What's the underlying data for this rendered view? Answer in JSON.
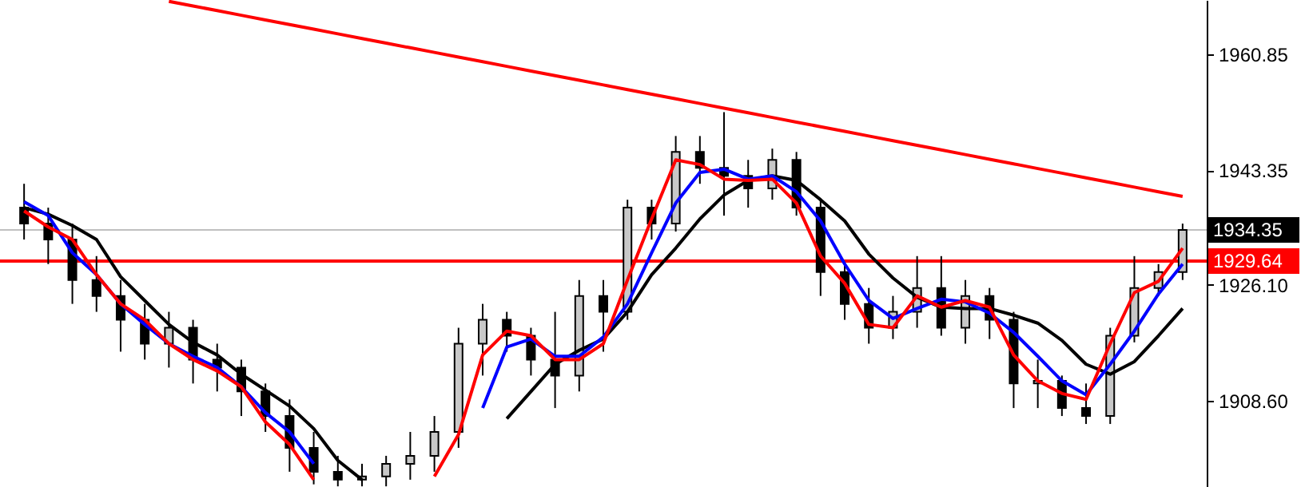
{
  "chart_data": {
    "type": "candlestick",
    "categories": [
      null,
      null,
      null,
      null,
      null,
      null,
      null,
      null,
      null,
      null,
      null,
      null,
      null,
      null,
      null,
      null,
      null,
      null,
      null,
      null,
      null,
      null,
      null,
      null,
      null,
      null,
      null,
      null,
      null,
      null,
      null,
      null,
      null,
      null,
      null,
      null,
      null,
      null,
      null,
      null,
      null,
      null,
      null,
      null,
      null,
      null,
      null,
      null,
      null
    ],
    "ohlc": [
      [
        1937.7,
        1941.3,
        1932.9,
        1935.3
      ],
      [
        1935.3,
        1937.7,
        1929.2,
        1932.9
      ],
      [
        1932.9,
        1935.3,
        1923.2,
        1926.8
      ],
      [
        1926.8,
        1930.4,
        1922.0,
        1924.4
      ],
      [
        1924.4,
        1926.8,
        1916.0,
        1920.8
      ],
      [
        1920.8,
        1923.2,
        1914.8,
        1917.2
      ],
      [
        1917.2,
        1922.0,
        1913.6,
        1919.6
      ],
      [
        1919.6,
        1920.8,
        1911.2,
        1914.8
      ],
      [
        1914.8,
        1917.2,
        1910.0,
        1913.6
      ],
      [
        1913.6,
        1914.8,
        1906.3,
        1910.0
      ],
      [
        1910.0,
        1911.2,
        1903.9,
        1906.3
      ],
      [
        1906.3,
        1908.8,
        1897.9,
        1901.5
      ],
      [
        1901.5,
        1903.9,
        1896.0,
        1897.9
      ],
      [
        1897.9,
        1900.3,
        1895.7,
        1896.7
      ],
      [
        1896.7,
        1899.1,
        1895.7,
        1897.2
      ],
      [
        1897.2,
        1900.3,
        1895.7,
        1899.1
      ],
      [
        1899.1,
        1903.9,
        1896.7,
        1900.3
      ],
      [
        1900.3,
        1906.3,
        1897.9,
        1903.9
      ],
      [
        1903.9,
        1919.6,
        1901.5,
        1917.2
      ],
      [
        1917.2,
        1923.2,
        1912.4,
        1920.8
      ],
      [
        1920.8,
        1922.0,
        1916.0,
        1918.4
      ],
      [
        1918.4,
        1919.6,
        1912.4,
        1914.8
      ],
      [
        1914.8,
        1922.0,
        1907.5,
        1912.4
      ],
      [
        1912.4,
        1926.8,
        1910.0,
        1924.4
      ],
      [
        1924.4,
        1926.8,
        1916.0,
        1922.0
      ],
      [
        1922.0,
        1938.9,
        1920.8,
        1937.7
      ],
      [
        1937.7,
        1938.9,
        1932.9,
        1935.3
      ],
      [
        1935.3,
        1948.5,
        1934.1,
        1946.1
      ],
      [
        1946.1,
        1948.5,
        1941.3,
        1943.7
      ],
      [
        1943.7,
        1952.1,
        1936.5,
        1942.5
      ],
      [
        1942.5,
        1944.9,
        1937.7,
        1940.6
      ],
      [
        1940.6,
        1946.6,
        1938.9,
        1944.9
      ],
      [
        1944.9,
        1946.1,
        1936.5,
        1937.7
      ],
      [
        1937.7,
        1938.9,
        1924.4,
        1928.0
      ],
      [
        1928.0,
        1929.2,
        1920.8,
        1923.2
      ],
      [
        1923.2,
        1925.6,
        1917.2,
        1919.6
      ],
      [
        1919.6,
        1924.4,
        1917.9,
        1922.0
      ],
      [
        1922.0,
        1930.4,
        1919.6,
        1925.6
      ],
      [
        1925.6,
        1930.4,
        1918.4,
        1919.6
      ],
      [
        1919.6,
        1926.8,
        1917.2,
        1924.4
      ],
      [
        1924.4,
        1925.6,
        1917.9,
        1920.8
      ],
      [
        1920.8,
        1922.0,
        1907.5,
        1911.2
      ],
      [
        1911.2,
        1914.8,
        1907.5,
        1911.6
      ],
      [
        1911.6,
        1912.4,
        1906.3,
        1907.5
      ],
      [
        1907.5,
        1911.2,
        1905.1,
        1906.3
      ],
      [
        1906.3,
        1919.6,
        1905.1,
        1918.4
      ],
      [
        1918.4,
        1930.4,
        1917.4,
        1925.6
      ],
      [
        1925.6,
        1929.2,
        1924.4,
        1928.0
      ],
      [
        1928.0,
        1935.3,
        1926.8,
        1934.35
      ]
    ],
    "series": [
      {
        "type": "line",
        "color": "#000000",
        "values": [
          1937.7,
          1936.7,
          1935.0,
          1932.9,
          1927.3,
          1923.7,
          1920.1,
          1917.4,
          1915.5,
          1912.6,
          1910.2,
          1907.8,
          1904.4,
          1899.6,
          1896.7,
          null,
          null,
          null,
          null,
          null,
          1905.9,
          1910.0,
          1914.1,
          1916.2,
          1917.9,
          1922.0,
          1927.6,
          1931.6,
          1936.0,
          1939.6,
          1941.8,
          1942.5,
          1941.8,
          1938.9,
          1935.7,
          1930.7,
          1927.1,
          1924.2,
          1922.7,
          1922.5,
          1922.5,
          1921.5,
          1920.3,
          1917.7,
          1914.1,
          1912.6,
          1914.5,
          1918.4,
          1922.5
        ]
      },
      {
        "type": "line",
        "color": "#0000ff",
        "values": [
          1938.6,
          1936.5,
          1930.9,
          1927.6,
          1923.2,
          1920.1,
          1917.2,
          1915.3,
          1913.6,
          1910.7,
          1906.8,
          1903.9,
          1899.1,
          null,
          null,
          null,
          null,
          null,
          null,
          1907.5,
          1916.7,
          1917.9,
          1915.3,
          1915.3,
          1918.2,
          1923.2,
          1930.9,
          1938.4,
          1943.0,
          1943.5,
          1942.0,
          1942.5,
          1940.1,
          1935.7,
          1929.2,
          1923.7,
          1921.0,
          1922.5,
          1923.9,
          1923.5,
          1921.8,
          1918.9,
          1915.3,
          1911.6,
          1909.5,
          1914.1,
          1919.1,
          1924.7,
          1929.2
        ]
      },
      {
        "type": "line",
        "color": "#ff0000",
        "values": [
          1937.2,
          1934.8,
          1932.9,
          1927.6,
          1923.2,
          1920.8,
          1917.2,
          1914.8,
          1913.1,
          1910.7,
          1905.4,
          1902.0,
          1896.7,
          null,
          null,
          null,
          null,
          1897.2,
          1903.5,
          1915.5,
          1919.1,
          1918.4,
          1914.8,
          1914.8,
          1917.2,
          1926.8,
          1936.0,
          1944.9,
          1944.2,
          1942.0,
          1941.8,
          1942.0,
          1938.4,
          1930.4,
          1926.3,
          1920.1,
          1919.6,
          1924.4,
          1922.7,
          1923.7,
          1922.7,
          1915.5,
          1911.6,
          1909.7,
          1908.8,
          1917.2,
          1924.9,
          1926.6,
          1931.6
        ]
      },
      {
        "type": "line",
        "color": "#ff0000",
        "values": [
          null,
          null,
          null,
          null,
          null,
          null,
          1968.8,
          1968.1,
          1967.4,
          1966.7,
          1966.0,
          1965.3,
          1964.6,
          1963.9,
          1963.2,
          1962.5,
          1961.8,
          1961.1,
          1960.4,
          1959.7,
          1959.0,
          1958.3,
          1957.6,
          1956.9,
          1956.2,
          1955.5,
          1954.8,
          1954.1,
          1953.4,
          1952.7,
          1952.0,
          1951.3,
          1950.6,
          1949.9,
          1949.2,
          1948.5,
          1947.8,
          1947.1,
          1946.4,
          1945.7,
          1945.0,
          1944.3,
          1943.6,
          1942.9,
          1942.2,
          1941.5,
          1940.8,
          1940.1,
          1939.4
        ]
      }
    ],
    "ylim": [
      1895.6,
      1969.0
    ],
    "yticks": [
      {
        "value": 1908.6,
        "label": "1908.60"
      },
      {
        "value": 1926.1,
        "label": "1926.10"
      },
      1943.35,
      1960.85
    ],
    "ref_lines": [
      {
        "axis": "y",
        "value": 1934.35,
        "label": "1934.35",
        "color": "#c0c0c0"
      },
      {
        "axis": "y",
        "value": 1929.64,
        "label": "1929.64",
        "color": "#ff0000"
      }
    ],
    "tick_labels": "y",
    "grid": false
  }
}
